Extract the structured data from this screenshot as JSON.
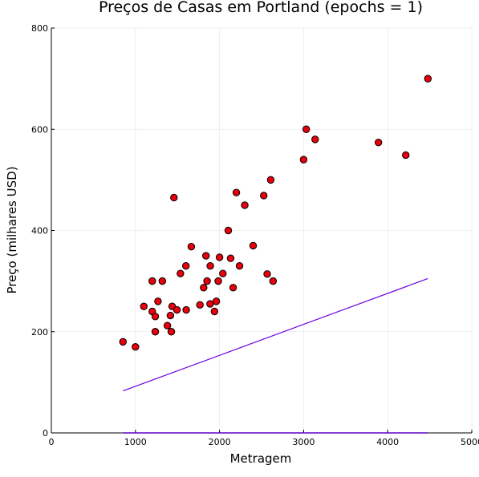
{
  "chart_data": {
    "type": "scatter",
    "title": "Preços de Casas em Portland (epochs = 1)",
    "xlabel": "Metragem",
    "ylabel": "Preço (milhares USD)",
    "xlim": [
      0,
      5000
    ],
    "ylim": [
      0,
      800
    ],
    "x_ticks": [
      "0",
      "1000",
      "2000",
      "3000",
      "4000",
      "5000"
    ],
    "y_ticks": [
      "0",
      "200",
      "400",
      "600",
      "800"
    ],
    "grid": true,
    "legend": "none",
    "colors": {
      "points": "#e8000b",
      "point_border": "#000000",
      "fit_line": "#6a00e0",
      "baseline": "#5a00c8"
    },
    "points": [
      [
        852,
        180
      ],
      [
        1000,
        170
      ],
      [
        1100,
        250
      ],
      [
        1200,
        300
      ],
      [
        1200,
        240
      ],
      [
        1236,
        230
      ],
      [
        1236,
        200
      ],
      [
        1268,
        260
      ],
      [
        1320,
        300
      ],
      [
        1380,
        212
      ],
      [
        1416,
        232
      ],
      [
        1427,
        200
      ],
      [
        1437,
        250
      ],
      [
        1458,
        465
      ],
      [
        1494,
        243
      ],
      [
        1535,
        315
      ],
      [
        1600,
        330
      ],
      [
        1604,
        243
      ],
      [
        1664,
        368
      ],
      [
        1767,
        253
      ],
      [
        1811,
        287
      ],
      [
        1839,
        350
      ],
      [
        1852,
        300
      ],
      [
        1888,
        255
      ],
      [
        1890,
        330
      ],
      [
        1940,
        240
      ],
      [
        1962,
        260
      ],
      [
        1985,
        300
      ],
      [
        2000,
        347
      ],
      [
        2040,
        315
      ],
      [
        2104,
        400
      ],
      [
        2132,
        345
      ],
      [
        2162,
        287
      ],
      [
        2200,
        475
      ],
      [
        2238,
        330
      ],
      [
        2300,
        450
      ],
      [
        2400,
        370
      ],
      [
        2526,
        469
      ],
      [
        2567,
        314
      ],
      [
        2609,
        500
      ],
      [
        2637,
        300
      ],
      [
        3000,
        540
      ],
      [
        3031,
        600
      ],
      [
        3137,
        580
      ],
      [
        3890,
        574
      ],
      [
        4215,
        549
      ],
      [
        4478,
        700
      ]
    ],
    "fit_line": [
      [
        852,
        83
      ],
      [
        4478,
        305
      ]
    ],
    "baseline_line": [
      [
        852,
        0
      ],
      [
        4478,
        0
      ]
    ]
  }
}
